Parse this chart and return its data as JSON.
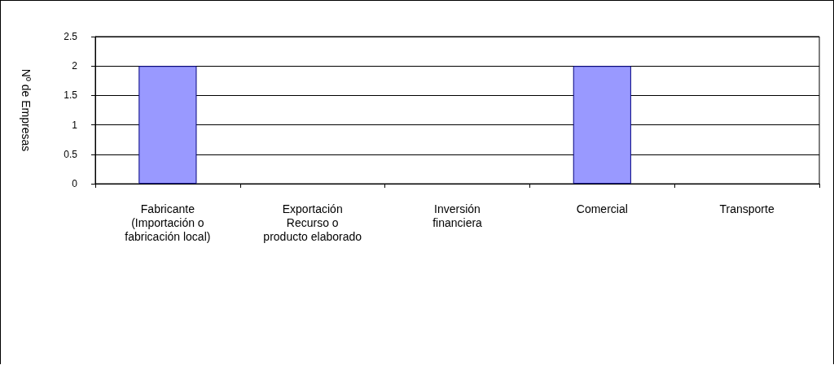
{
  "chart_data": {
    "type": "bar",
    "ylabel": "Nº de Empresas",
    "categories": [
      "Fabricante\n(Importación o\nfabricación local)",
      "Exportación\nRecurso o\nproducto elaborado",
      "Inversión\nfinanciera",
      "Comercial",
      "Transporte"
    ],
    "values": [
      2,
      0,
      0,
      2,
      0
    ],
    "color": "#9999ff",
    "ylim": [
      0,
      2.5
    ],
    "yticks": [
      0,
      0.5,
      1,
      1.5,
      2,
      2.5
    ],
    "grid": "y"
  }
}
